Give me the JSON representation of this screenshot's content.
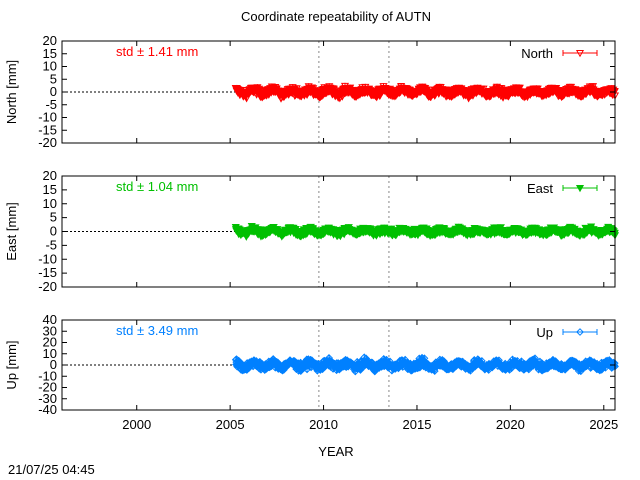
{
  "title": "Coordinate repeatability of AUTN",
  "timestamp": "21/07/25 04:45",
  "chart_data": {
    "type": "scatter",
    "x_label": "YEAR",
    "x_range": [
      1996,
      2025.6
    ],
    "x_ticks": [
      2000,
      2005,
      2010,
      2015,
      2020,
      2025
    ],
    "event_lines": [
      2009.75,
      2013.5
    ],
    "data_start": 2005.3,
    "data_end": 2025.6,
    "panels": [
      {
        "key": "north",
        "ylabel": "North [mm]",
        "ylim": [
          -20,
          20
        ],
        "yticks": [
          20,
          15,
          10,
          5,
          0,
          -5,
          -10,
          -15,
          -20
        ],
        "std_label": "std ± 1.41 mm",
        "legend": "North",
        "color": "#ff0000",
        "marker": "triangle-down-open",
        "std": 1.41,
        "spread": 3.5
      },
      {
        "key": "east",
        "ylabel": "East [mm]",
        "ylim": [
          -20,
          20
        ],
        "yticks": [
          20,
          15,
          10,
          5,
          0,
          -5,
          -10,
          -15,
          -20
        ],
        "std_label": "std ± 1.04 mm",
        "legend": "East",
        "color": "#00c000",
        "marker": "triangle-down-filled",
        "std": 1.04,
        "spread": 3.0
      },
      {
        "key": "up",
        "ylabel": "Up [mm]",
        "ylim": [
          -40,
          40
        ],
        "yticks": [
          40,
          30,
          20,
          10,
          0,
          -10,
          -20,
          -30,
          -40
        ],
        "ytick_labels": [
          "40",
          "30",
          "20",
          "10",
          "0",
          "-10",
          "-20",
          "-30",
          "-40"
        ],
        "std_label": "std ± 3.49 mm",
        "legend": "Up",
        "color": "#0080ff",
        "marker": "diamond-open",
        "std": 3.49,
        "spread": 8.0
      }
    ]
  }
}
